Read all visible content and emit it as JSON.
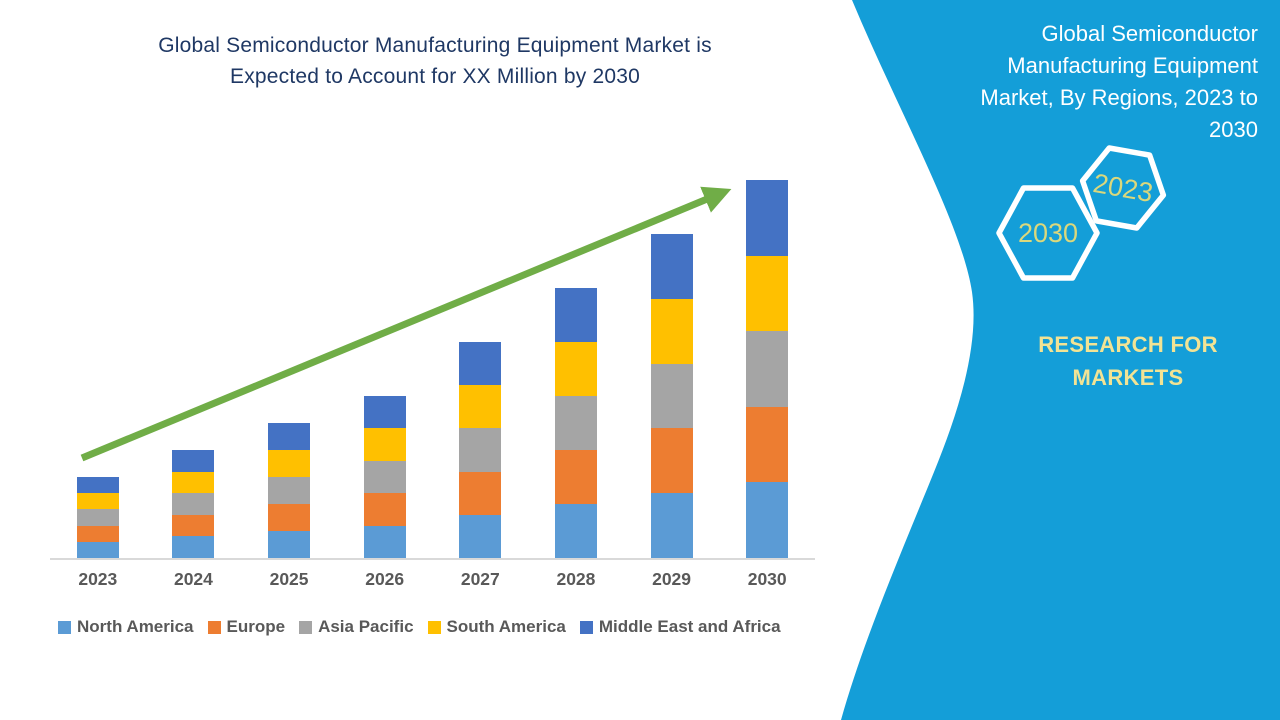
{
  "main_title": {
    "lines": [
      "Global Semiconductor Manufacturing Equipment Market is",
      "Expected to Account for XX Million by 2030"
    ],
    "color": "#1F3864"
  },
  "chart_data": {
    "type": "bar",
    "stacked": true,
    "title": "Global Semiconductor Manufacturing Equipment Market is Expected to Account for XX Million by 2030",
    "categories": [
      "2023",
      "2024",
      "2025",
      "2026",
      "2027",
      "2028",
      "2029",
      "2030"
    ],
    "series": [
      {
        "name": "North America",
        "color": "#5B9BD5",
        "values": [
          0.6,
          0.8,
          1.0,
          1.2,
          1.6,
          2.0,
          2.4,
          2.8
        ]
      },
      {
        "name": "Europe",
        "color": "#ED7D31",
        "values": [
          0.6,
          0.8,
          1.0,
          1.2,
          1.6,
          2.0,
          2.4,
          2.8
        ]
      },
      {
        "name": "Asia Pacific",
        "color": "#A5A5A5",
        "values": [
          0.6,
          0.8,
          1.0,
          1.2,
          1.6,
          2.0,
          2.4,
          2.8
        ]
      },
      {
        "name": "South America",
        "color": "#FFC000",
        "values": [
          0.6,
          0.8,
          1.0,
          1.2,
          1.6,
          2.0,
          2.4,
          2.8
        ]
      },
      {
        "name": "Middle East and Africa",
        "color": "#4472C4",
        "values": [
          0.6,
          0.8,
          1.0,
          1.2,
          1.6,
          2.0,
          2.4,
          2.8
        ]
      }
    ],
    "stack_totals": [
      3,
      4,
      5,
      6,
      8,
      10,
      12,
      14
    ],
    "value_axis_labels_visible": false,
    "value_note": "Actual values hidden (title shows 'XX Million'); values are relative estimates read from bar heights",
    "xlabel": "",
    "ylabel": "",
    "ylim": [
      0,
      14.5
    ],
    "gridlines": false,
    "legend_position": "bottom",
    "trend_arrow": {
      "present": true,
      "color": "#70AD47",
      "direction": "up-right"
    }
  },
  "side_panel": {
    "background_color": "#149ED8",
    "title_lines": [
      "Global Semiconductor",
      "Manufacturing Equipment",
      "Market, By Regions, 2023 to",
      "2030"
    ],
    "hexagons": [
      {
        "label": "2030"
      },
      {
        "label": "2023"
      }
    ],
    "hexagon_label_color": "#DBD87C",
    "brand": {
      "lines": [
        "RESEARCH FOR",
        "MARKETS"
      ],
      "color": "#F2E394"
    }
  }
}
